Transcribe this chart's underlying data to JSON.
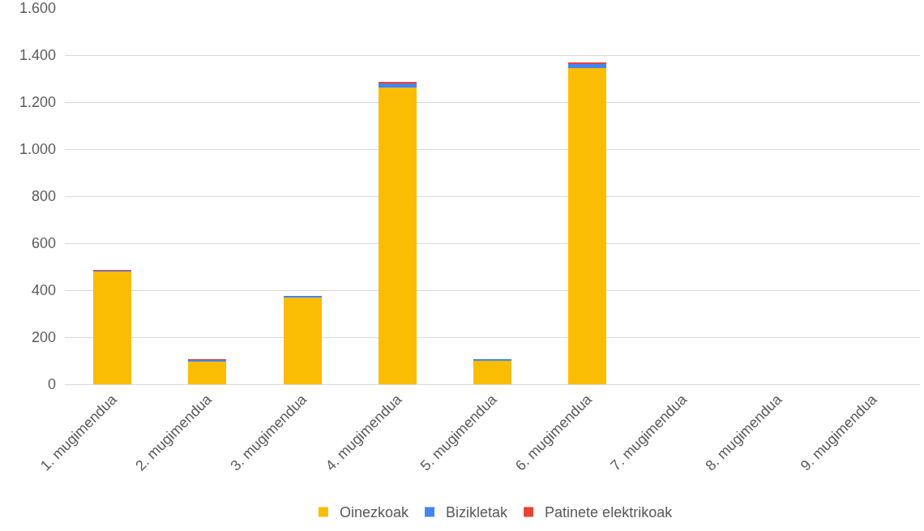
{
  "chart_data": {
    "type": "bar",
    "stacked": true,
    "categories": [
      "1. mugimendua",
      "2. mugimendua",
      "3. mugimendua",
      "4. mugimendua",
      "5. mugimendua",
      "6. mugimendua",
      "7. mugimendua",
      "8. mugimendua",
      "9. mugimendua"
    ],
    "series": [
      {
        "name": "Oinezkoak",
        "color": "#fbbc04",
        "values": [
          482,
          97,
          370,
          1262,
          102,
          1346,
          0,
          0,
          0
        ]
      },
      {
        "name": "Bizikletak",
        "color": "#4285f4",
        "values": [
          1,
          7,
          7,
          20,
          3,
          18,
          0,
          0,
          0
        ]
      },
      {
        "name": "Patinete elektrikoak",
        "color": "#ea4335",
        "values": [
          1,
          1,
          0,
          2,
          0,
          5,
          0,
          0,
          0
        ]
      }
    ],
    "ylim": [
      0,
      1600
    ],
    "yticks": [
      0,
      200,
      400,
      600,
      800,
      {
        "value": 1000,
        "label": "1.000"
      },
      {
        "value": 1200,
        "label": "1.200"
      },
      {
        "value": 1400,
        "label": "1.400"
      },
      {
        "value": 1600,
        "label": "1.600"
      }
    ],
    "grid": "y",
    "legend": "bottom"
  }
}
